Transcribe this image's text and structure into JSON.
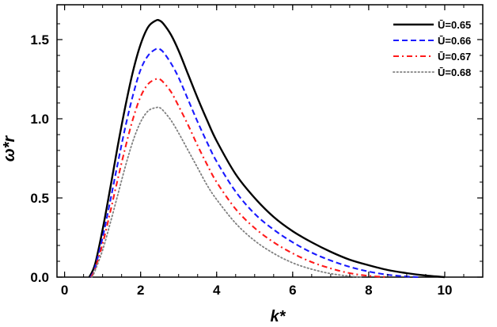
{
  "chart_data": {
    "type": "line",
    "title": "",
    "xlabel": "k*",
    "ylabel": "ω*r",
    "xlim": [
      -0.2,
      11.0
    ],
    "ylim": [
      0.0,
      1.72
    ],
    "xticks": [
      0,
      2,
      4,
      6,
      8,
      10
    ],
    "yticks": [
      0.0,
      0.5,
      1.0,
      1.5
    ],
    "xtick_labels": [
      "0",
      "2",
      "4",
      "6",
      "8",
      "10"
    ],
    "ytick_labels": [
      "0.0",
      "0.5",
      "1.0",
      "1.5"
    ],
    "grid": false,
    "legend_position": "top-right",
    "series": [
      {
        "name": "Ū=0.65",
        "color": "#000000",
        "style": "solid",
        "x": [
          0.65,
          0.8,
          1.0,
          1.2,
          1.4,
          1.6,
          1.8,
          2.0,
          2.2,
          2.4,
          2.5,
          2.6,
          2.8,
          3.0,
          3.25,
          3.5,
          3.75,
          4.0,
          4.5,
          5.0,
          5.5,
          6.0,
          6.5,
          7.0,
          7.5,
          8.0,
          8.5,
          9.0,
          9.5,
          10.0
        ],
        "y": [
          0.0,
          0.08,
          0.3,
          0.56,
          0.83,
          1.08,
          1.3,
          1.47,
          1.58,
          1.62,
          1.62,
          1.6,
          1.53,
          1.43,
          1.28,
          1.13,
          0.99,
          0.86,
          0.65,
          0.5,
          0.38,
          0.29,
          0.22,
          0.16,
          0.11,
          0.075,
          0.045,
          0.025,
          0.01,
          0.0
        ]
      },
      {
        "name": "Ū=0.66",
        "color": "#1a1aff",
        "style": "dashed",
        "x": [
          0.68,
          0.8,
          1.0,
          1.2,
          1.4,
          1.6,
          1.8,
          2.0,
          2.2,
          2.4,
          2.5,
          2.6,
          2.8,
          3.0,
          3.25,
          3.5,
          3.75,
          4.0,
          4.5,
          5.0,
          5.5,
          6.0,
          6.5,
          7.0,
          7.5,
          8.0,
          8.5,
          9.0,
          9.3
        ],
        "y": [
          0.0,
          0.06,
          0.25,
          0.48,
          0.72,
          0.95,
          1.15,
          1.31,
          1.4,
          1.44,
          1.44,
          1.42,
          1.35,
          1.26,
          1.12,
          0.98,
          0.85,
          0.73,
          0.54,
          0.4,
          0.3,
          0.22,
          0.155,
          0.105,
          0.065,
          0.035,
          0.015,
          0.004,
          0.0
        ]
      },
      {
        "name": "Ū=0.67",
        "color": "#ff1a1a",
        "style": "dashdot",
        "x": [
          0.7,
          0.8,
          1.0,
          1.2,
          1.4,
          1.6,
          1.8,
          2.0,
          2.2,
          2.4,
          2.5,
          2.6,
          2.8,
          3.0,
          3.25,
          3.5,
          3.75,
          4.0,
          4.5,
          5.0,
          5.5,
          6.0,
          6.5,
          7.0,
          7.5,
          8.0,
          8.5
        ],
        "y": [
          0.0,
          0.05,
          0.21,
          0.41,
          0.62,
          0.82,
          1.0,
          1.14,
          1.22,
          1.25,
          1.25,
          1.23,
          1.17,
          1.08,
          0.96,
          0.83,
          0.71,
          0.6,
          0.43,
          0.31,
          0.22,
          0.15,
          0.095,
          0.055,
          0.025,
          0.008,
          0.0
        ]
      },
      {
        "name": "Ū=0.68",
        "color": "#7f7f7f",
        "style": "dotted",
        "x": [
          0.72,
          0.8,
          1.0,
          1.2,
          1.4,
          1.6,
          1.8,
          2.0,
          2.2,
          2.4,
          2.5,
          2.6,
          2.8,
          3.0,
          3.25,
          3.5,
          3.75,
          4.0,
          4.5,
          5.0,
          5.5,
          6.0,
          6.5,
          7.0,
          7.5,
          7.8
        ],
        "y": [
          0.0,
          0.04,
          0.17,
          0.34,
          0.52,
          0.7,
          0.86,
          0.98,
          1.05,
          1.07,
          1.07,
          1.05,
          0.99,
          0.91,
          0.8,
          0.69,
          0.58,
          0.49,
          0.34,
          0.23,
          0.15,
          0.09,
          0.05,
          0.022,
          0.006,
          0.0
        ]
      }
    ]
  }
}
